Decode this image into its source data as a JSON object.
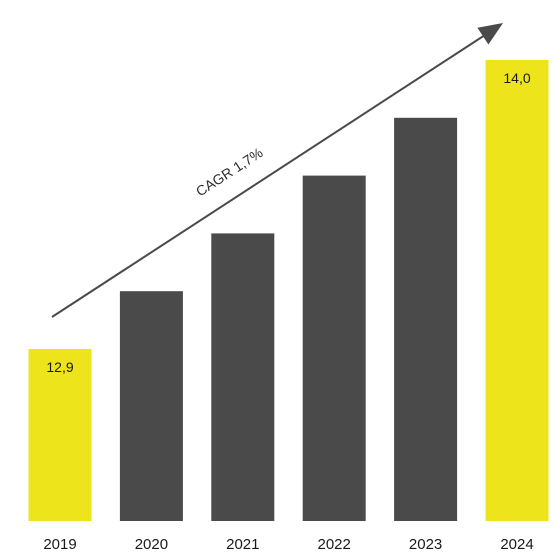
{
  "chart_data": {
    "type": "bar",
    "title": "",
    "xlabel": "",
    "ylabel": "",
    "categories": [
      "2019",
      "2020",
      "2021",
      "2022",
      "2023",
      "2024"
    ],
    "values": [
      12.9,
      13.12,
      13.34,
      13.56,
      13.78,
      14.0
    ],
    "value_labels": [
      "12,9",
      "",
      "",
      "",
      "",
      "14,0"
    ],
    "bar_colors": [
      "#ede41b",
      "#4a4a4a",
      "#4a4a4a",
      "#4a4a4a",
      "#4a4a4a",
      "#ede41b"
    ],
    "annotation": {
      "text": "CAGR 1,7%",
      "arrow_color": "#4a4a4a"
    },
    "grid": false,
    "legend": "none"
  }
}
